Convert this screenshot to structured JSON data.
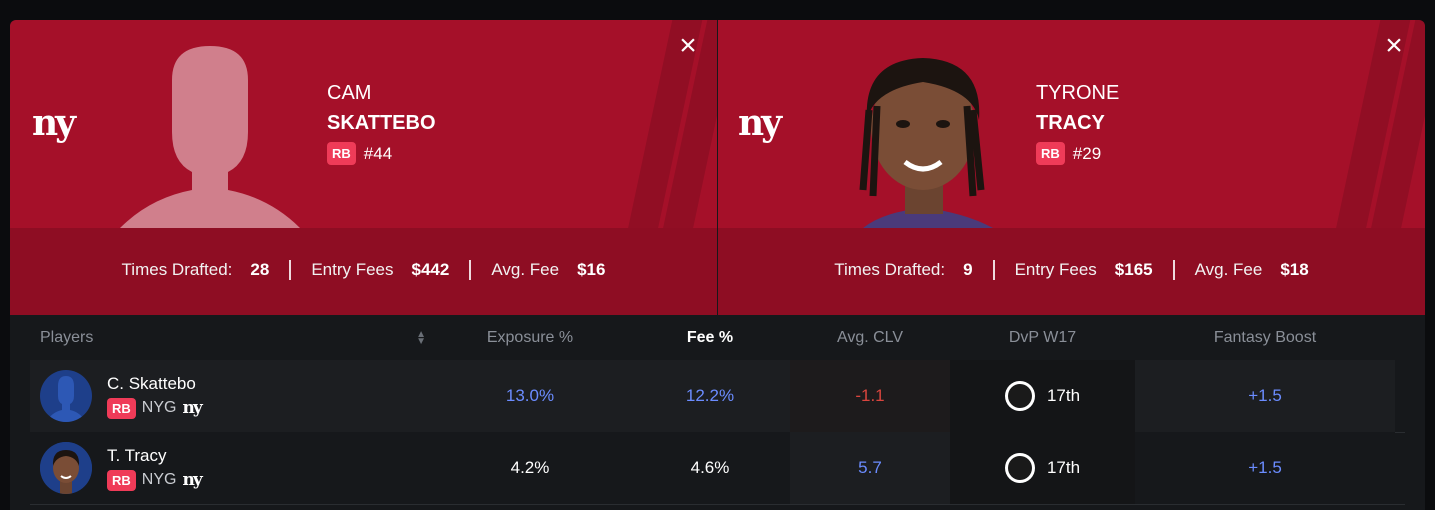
{
  "players": [
    {
      "first": "CAM",
      "last": "SKATTEBO",
      "pos": "RB",
      "jersey": "#44",
      "team_logo": "ny",
      "stats": [
        {
          "label": "Times Drafted:",
          "value": "28"
        },
        {
          "label": "Entry Fees",
          "value": "$442"
        },
        {
          "label": "Avg. Fee",
          "value": "$16"
        }
      ]
    },
    {
      "first": "TYRONE",
      "last": "TRACY",
      "pos": "RB",
      "jersey": "#29",
      "team_logo": "ny",
      "stats": [
        {
          "label": "Times Drafted:",
          "value": "9"
        },
        {
          "label": "Entry Fees",
          "value": "$165"
        },
        {
          "label": "Avg. Fee",
          "value": "$18"
        }
      ]
    }
  ],
  "close_icon": "×",
  "table": {
    "headers": [
      "Players",
      "Exposure %",
      "Fee %",
      "Avg. CLV",
      "DvP W17",
      "Fantasy Boost"
    ],
    "rows": [
      {
        "name": "C. Skattebo",
        "pos": "RB",
        "team": "NYG",
        "team_logo": "ny",
        "exposure": "13.0%",
        "fee": "12.2%",
        "clv": "-1.1",
        "dvp": "17th",
        "boost": "+1.5"
      },
      {
        "name": "T. Tracy",
        "pos": "RB",
        "team": "NYG",
        "team_logo": "ny",
        "exposure": "4.2%",
        "fee": "4.6%",
        "clv": "5.7",
        "dvp": "17th",
        "boost": "+1.5"
      }
    ]
  },
  "colors": {
    "card_red": "#a51029",
    "badge_pink": "#ef3b58",
    "value_blue": "#6b8cff",
    "value_red": "#d9453e"
  }
}
